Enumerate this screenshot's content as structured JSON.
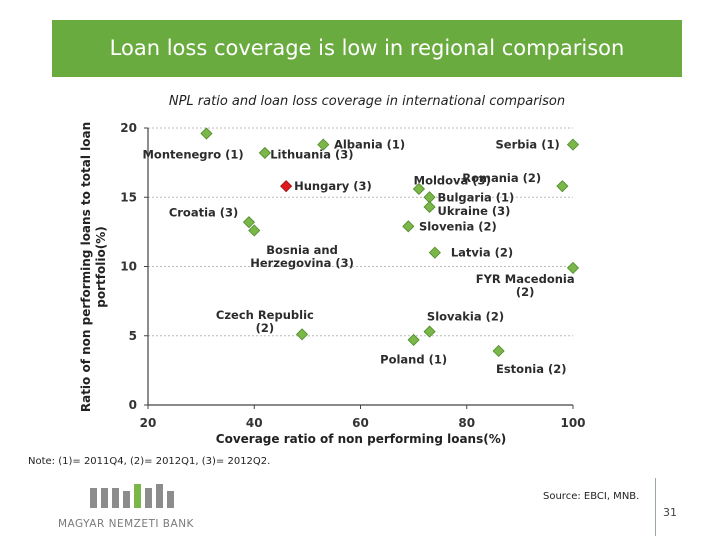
{
  "header": {
    "title": "Loan loss coverage is low in regional comparison"
  },
  "footer": {
    "note": "Note: (1)= 2011Q4, (2)= 2012Q1, (3)= 2012Q2.",
    "source": "Source: EBCI, MNB.",
    "page_number": "31",
    "logo_text": "MAGYAR NEMZETI BANK"
  },
  "colors": {
    "accent": "#6aab3f",
    "point": "#7ab648",
    "highlight": "#e0191f",
    "grid": "#bbbbbb"
  },
  "chart_data": {
    "type": "scatter",
    "title": "NPL ratio and loan loss coverage in international comparison",
    "xlabel": "Coverage ratio of non performing loans(%)",
    "ylabel": "Ratio of non performing loans to total loan portfolio(%)",
    "xlim": [
      20,
      100
    ],
    "ylim": [
      0,
      20
    ],
    "xticks": [
      "20",
      "40",
      "60",
      "80",
      "100"
    ],
    "yticks": [
      "0",
      "5",
      "10",
      "15",
      "20"
    ],
    "grid": "horizontal-dashed",
    "points": [
      {
        "label": "Montenegro (1)",
        "x": 31,
        "y": 19.6,
        "highlight": false
      },
      {
        "label": "Lithuania (3)",
        "x": 42,
        "y": 18.2,
        "highlight": false
      },
      {
        "label": "Albania (1)",
        "x": 53,
        "y": 18.8,
        "highlight": false
      },
      {
        "label": "Serbia (1)",
        "x": 100,
        "y": 18.8,
        "highlight": false
      },
      {
        "label": "Hungary (3)",
        "x": 46,
        "y": 15.8,
        "highlight": true
      },
      {
        "label": "Moldova (3)",
        "x": 71,
        "y": 15.6,
        "highlight": false
      },
      {
        "label": "Bulgaria (1)",
        "x": 73,
        "y": 15.0,
        "highlight": false
      },
      {
        "label": "Ukraine (3)",
        "x": 73,
        "y": 14.3,
        "highlight": false
      },
      {
        "label": "Romania (2)",
        "x": 98,
        "y": 15.8,
        "highlight": false
      },
      {
        "label": "Croatia (3)",
        "x": 39,
        "y": 13.2,
        "highlight": false
      },
      {
        "label": "Croatia (3)",
        "x": 40,
        "y": 12.6,
        "highlight": false
      },
      {
        "label": "Slovenia (2)",
        "x": 69,
        "y": 12.9,
        "highlight": false
      },
      {
        "label": "Latvia (2)",
        "x": 74,
        "y": 11.0,
        "highlight": false
      },
      {
        "label": "FYR Macedonia (2)",
        "x": 100,
        "y": 9.9,
        "highlight": false
      },
      {
        "label": "Czech Republic (2)",
        "x": 49,
        "y": 5.1,
        "highlight": false
      },
      {
        "label": "Slovakia (2)",
        "x": 73,
        "y": 5.3,
        "highlight": false
      },
      {
        "label": "Poland (1)",
        "x": 70,
        "y": 4.7,
        "highlight": false
      },
      {
        "label": "Estonia (2)",
        "x": 86,
        "y": 3.9,
        "highlight": false
      }
    ],
    "labels": [
      {
        "text": "Montenegro (1)",
        "x": 38,
        "y": 18.1,
        "anchor": "end",
        "lines": [
          "Montenegro (1)"
        ]
      },
      {
        "text": "Lithuania (3)",
        "x": 43,
        "y": 18.1,
        "anchor": "start",
        "lines": [
          "Lithuania (3)"
        ]
      },
      {
        "text": "Albania (1)",
        "x": 55,
        "y": 18.8,
        "anchor": "start",
        "lines": [
          "Albania (1)"
        ]
      },
      {
        "text": "Serbia (1)",
        "x": 97.5,
        "y": 18.8,
        "anchor": "end",
        "lines": [
          "Serbia (1)"
        ]
      },
      {
        "text": "Hungary (3)",
        "x": 47.5,
        "y": 15.8,
        "anchor": "start",
        "lines": [
          "Hungary (3)"
        ]
      },
      {
        "text": "Moldova (3)",
        "x": 70,
        "y": 16.2,
        "anchor": "start",
        "lines": [
          "Moldova (3)"
        ]
      },
      {
        "text": "Romania (2)",
        "x": 94,
        "y": 16.4,
        "anchor": "end",
        "lines": [
          "Romania (2)"
        ]
      },
      {
        "text": "Bulgaria (1)",
        "x": 74.5,
        "y": 15.0,
        "anchor": "start",
        "lines": [
          "Bulgaria (1)"
        ]
      },
      {
        "text": "Ukraine (3)",
        "x": 74.5,
        "y": 14.0,
        "anchor": "start",
        "lines": [
          "Ukraine (3)"
        ]
      },
      {
        "text": "Croatia (3)",
        "x": 37,
        "y": 13.9,
        "anchor": "end",
        "lines": [
          "Croatia (3)"
        ]
      },
      {
        "text": "Slovenia (2)",
        "x": 71,
        "y": 12.9,
        "anchor": "start",
        "lines": [
          "Slovenia (2)"
        ]
      },
      {
        "text": "Bosnia and Herzegovina (3)",
        "x": 49,
        "y": 11.2,
        "anchor": "middle",
        "lines": [
          "Bosnia and",
          "Herzegovina (3)"
        ]
      },
      {
        "text": "Latvia (2)",
        "x": 77,
        "y": 11.0,
        "anchor": "start",
        "lines": [
          "Latvia (2)"
        ]
      },
      {
        "text": "FYR Macedonia (2)",
        "x": 91,
        "y": 9.1,
        "anchor": "middle",
        "lines": [
          "FYR Macedonia",
          "(2)"
        ]
      },
      {
        "text": "Czech Republic (2)",
        "x": 42,
        "y": 6.5,
        "anchor": "middle",
        "lines": [
          "Czech Republic",
          "(2)"
        ]
      },
      {
        "text": "Slovakia (2)",
        "x": 72.5,
        "y": 6.4,
        "anchor": "start",
        "lines": [
          "Slovakia (2)"
        ]
      },
      {
        "text": "Poland (1)",
        "x": 70,
        "y": 3.3,
        "anchor": "middle",
        "lines": [
          "Poland (1)"
        ]
      },
      {
        "text": "Estonia (2)",
        "x": 85.5,
        "y": 2.6,
        "anchor": "start",
        "lines": [
          "Estonia (2)"
        ]
      }
    ]
  }
}
